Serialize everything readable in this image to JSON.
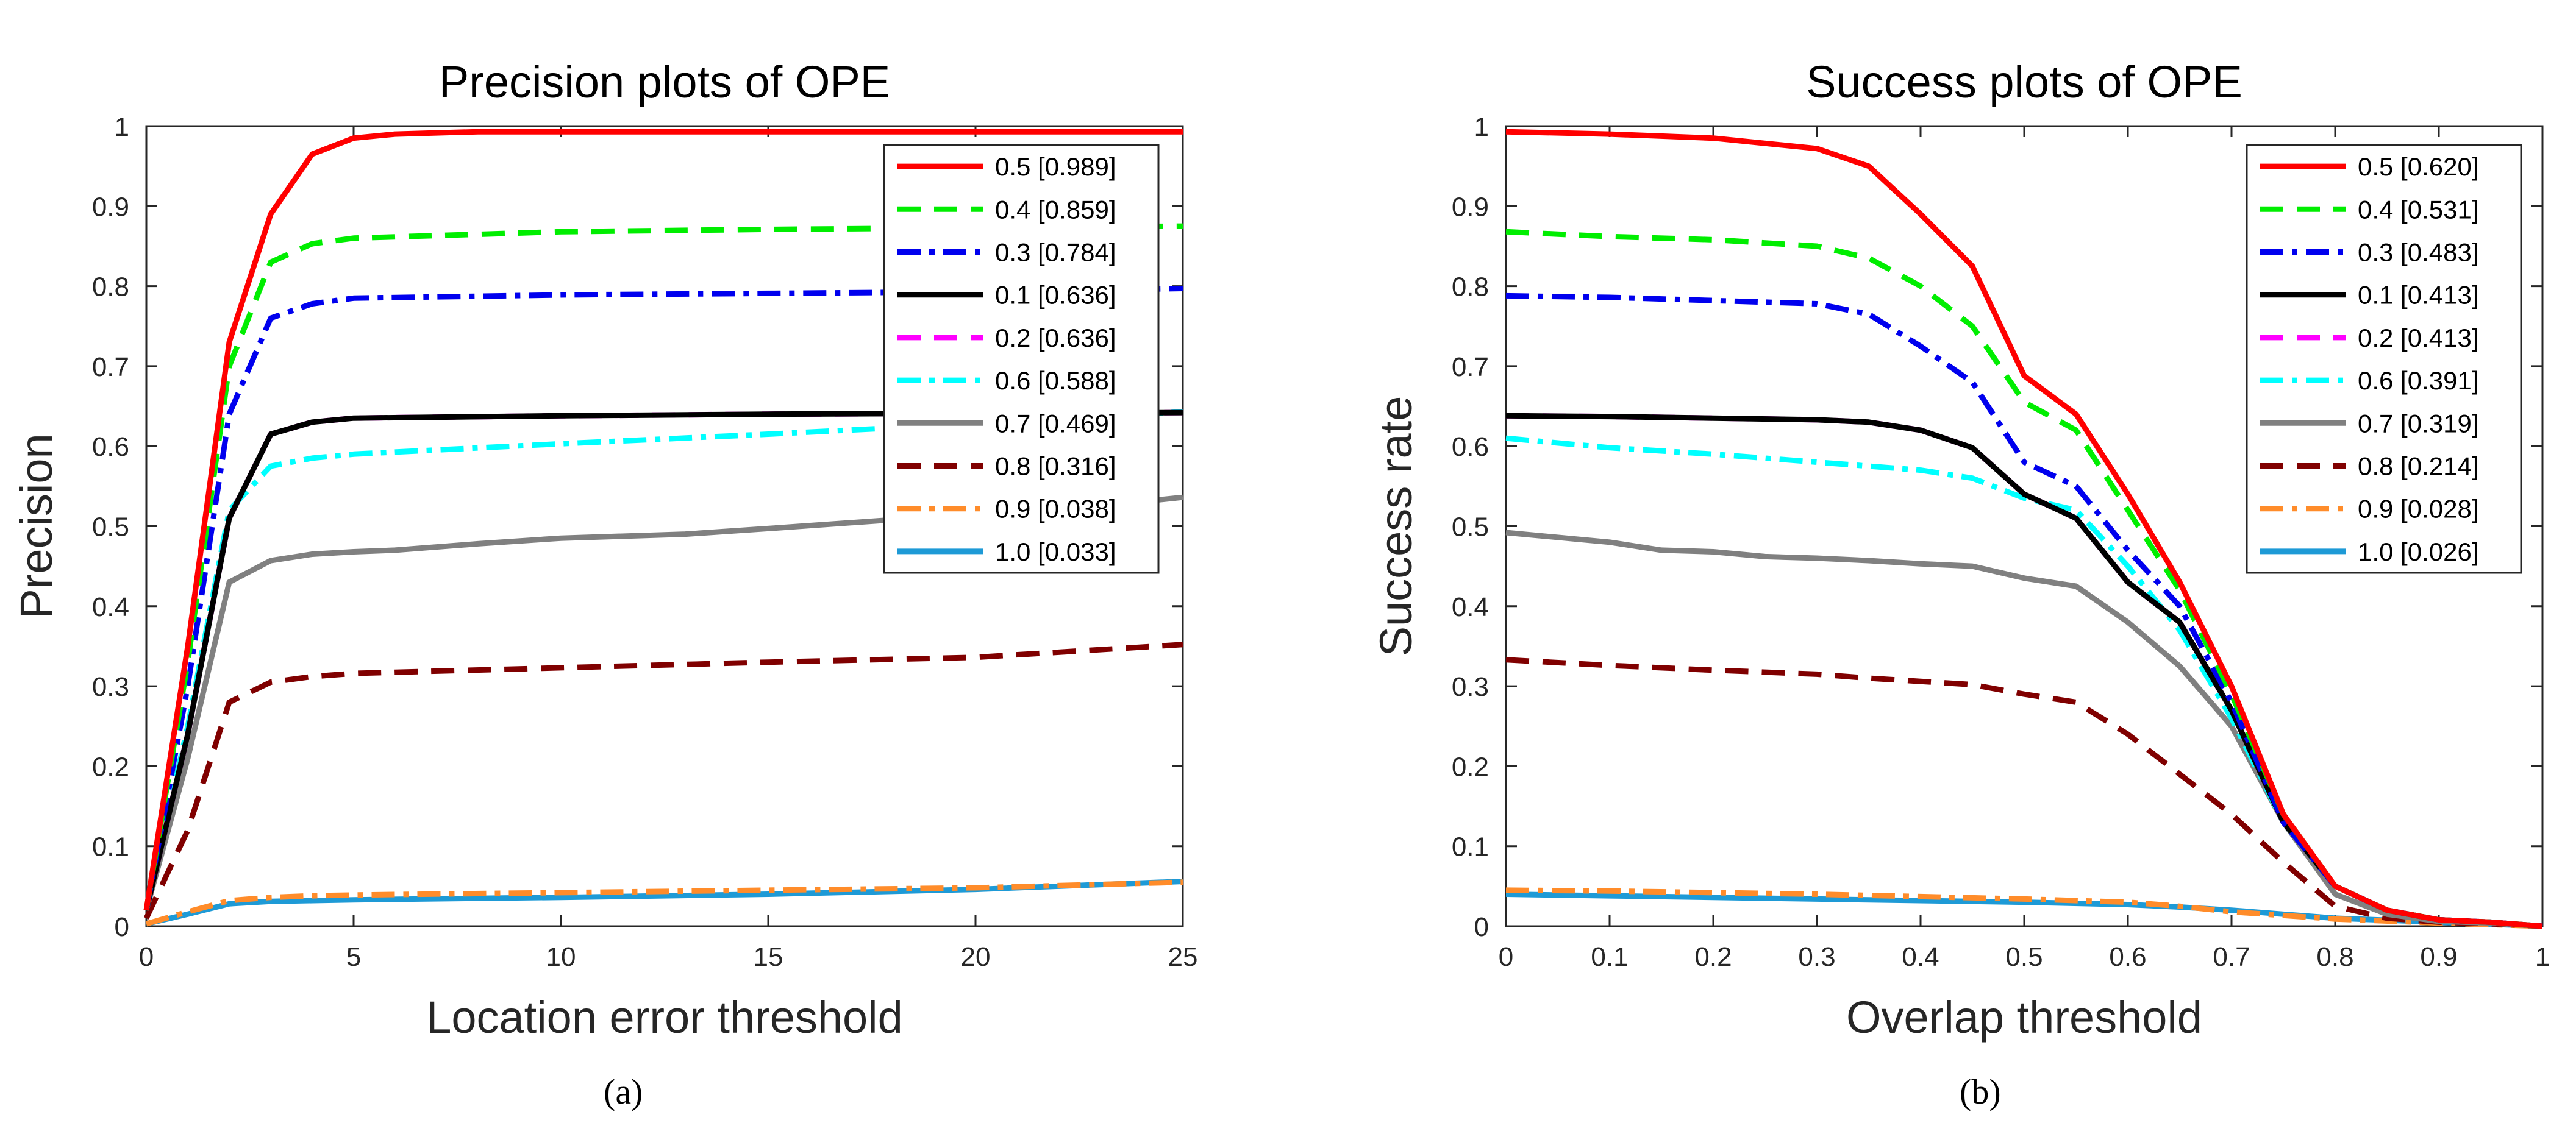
{
  "panel_labels": [
    "(a)",
    "(b)"
  ],
  "chart_data": [
    {
      "type": "line",
      "title": "Precision plots of OPE",
      "xlabel": "Location error threshold",
      "ylabel": "Precision",
      "xlim": [
        0,
        25
      ],
      "ylim": [
        0,
        1
      ],
      "x_ticks": [
        "0",
        "5",
        "10",
        "15",
        "20",
        "25"
      ],
      "y_ticks": [
        "0",
        "0.1",
        "0.2",
        "0.3",
        "0.4",
        "0.5",
        "0.6",
        "0.7",
        "0.8",
        "0.9",
        "1"
      ],
      "grid": false,
      "legend_position": "top-right",
      "series": [
        {
          "name": "0.5 [0.989]",
          "color": "#ff0000",
          "dash": "solid",
          "x": [
            0,
            1,
            2,
            3,
            4,
            5,
            6,
            8,
            10,
            15,
            20,
            25
          ],
          "values": [
            0.02,
            0.35,
            0.73,
            0.89,
            0.965,
            0.985,
            0.99,
            0.993,
            0.993,
            0.993,
            0.993,
            0.993
          ]
        },
        {
          "name": "0.4 [0.859]",
          "color": "#00ee00",
          "dash": "dash",
          "x": [
            0,
            1,
            2,
            3,
            4,
            5,
            10,
            15,
            20,
            25
          ],
          "values": [
            0.02,
            0.33,
            0.7,
            0.83,
            0.853,
            0.86,
            0.868,
            0.871,
            0.873,
            0.875
          ]
        },
        {
          "name": "0.3 [0.784]",
          "color": "#0000ee",
          "dash": "dashdot",
          "x": [
            0,
            1,
            2,
            3,
            4,
            5,
            10,
            15,
            20,
            25
          ],
          "values": [
            0.02,
            0.3,
            0.64,
            0.76,
            0.778,
            0.785,
            0.789,
            0.791,
            0.793,
            0.797
          ]
        },
        {
          "name": "0.1 [0.636]",
          "color": "#000000",
          "dash": "solid",
          "x": [
            0,
            1,
            2,
            3,
            4,
            5,
            10,
            15,
            20,
            25
          ],
          "values": [
            0.02,
            0.24,
            0.51,
            0.615,
            0.63,
            0.635,
            0.638,
            0.64,
            0.641,
            0.642
          ]
        },
        {
          "name": "0.2 [0.636]",
          "color": "#ff00ff",
          "dash": "dash",
          "x": [
            0,
            1,
            2,
            3,
            4,
            5,
            10,
            15,
            20,
            25
          ],
          "values": [
            0.02,
            0.24,
            0.51,
            0.615,
            0.63,
            0.635,
            0.638,
            0.64,
            0.641,
            0.642
          ]
        },
        {
          "name": "0.6 [0.588]",
          "color": "#00ffff",
          "dash": "dashdot",
          "x": [
            0,
            1,
            2,
            3,
            4,
            5,
            10,
            15,
            20,
            25
          ],
          "values": [
            0.02,
            0.25,
            0.52,
            0.575,
            0.585,
            0.59,
            0.603,
            0.615,
            0.628,
            0.643
          ]
        },
        {
          "name": "0.7 [0.469]",
          "color": "#808080",
          "dash": "solid",
          "x": [
            0,
            1,
            2,
            3,
            4,
            5,
            6,
            8,
            10,
            13,
            15,
            18,
            20,
            22,
            25
          ],
          "values": [
            0.02,
            0.21,
            0.43,
            0.457,
            0.465,
            0.468,
            0.47,
            0.478,
            0.485,
            0.49,
            0.497,
            0.508,
            0.51,
            0.52,
            0.536
          ]
        },
        {
          "name": "0.8 [0.316]",
          "color": "#800000",
          "dash": "dash",
          "x": [
            0,
            1,
            2,
            3,
            4,
            5,
            10,
            15,
            20,
            25
          ],
          "values": [
            0.01,
            0.12,
            0.28,
            0.305,
            0.312,
            0.316,
            0.323,
            0.33,
            0.336,
            0.352
          ]
        },
        {
          "name": "0.9 [0.038]",
          "color": "#ff8c2a",
          "dash": "dashdot",
          "x": [
            0,
            1,
            2,
            3,
            4,
            5,
            10,
            15,
            20,
            25
          ],
          "values": [
            0.003,
            0.018,
            0.032,
            0.036,
            0.038,
            0.039,
            0.042,
            0.045,
            0.048,
            0.055
          ]
        },
        {
          "name": "1.0 [0.033]",
          "color": "#1e9ad6",
          "dash": "solid",
          "x": [
            0,
            1,
            2,
            3,
            4,
            5,
            10,
            15,
            20,
            25
          ],
          "values": [
            0.003,
            0.015,
            0.028,
            0.031,
            0.032,
            0.033,
            0.036,
            0.04,
            0.046,
            0.056
          ]
        }
      ]
    },
    {
      "type": "line",
      "title": "Success plots of OPE",
      "xlabel": "Overlap threshold",
      "ylabel": "Success rate",
      "xlim": [
        0,
        1
      ],
      "ylim": [
        0,
        1
      ],
      "x_ticks": [
        "0",
        "0.1",
        "0.2",
        "0.3",
        "0.4",
        "0.5",
        "0.6",
        "0.7",
        "0.8",
        "0.9",
        "1"
      ],
      "y_ticks": [
        "0",
        "0.1",
        "0.2",
        "0.3",
        "0.4",
        "0.5",
        "0.6",
        "0.7",
        "0.8",
        "0.9",
        "1"
      ],
      "grid": false,
      "legend_position": "top-right",
      "series": [
        {
          "name": "0.5 [0.620]",
          "color": "#ff0000",
          "dash": "solid",
          "x": [
            0,
            0.1,
            0.2,
            0.3,
            0.35,
            0.4,
            0.45,
            0.5,
            0.55,
            0.6,
            0.65,
            0.7,
            0.75,
            0.8,
            0.85,
            0.9,
            0.95,
            1
          ],
          "values": [
            0.993,
            0.99,
            0.985,
            0.972,
            0.95,
            0.89,
            0.825,
            0.688,
            0.64,
            0.54,
            0.43,
            0.3,
            0.14,
            0.05,
            0.02,
            0.008,
            0.005,
            0.0
          ]
        },
        {
          "name": "0.4 [0.531]",
          "color": "#00ee00",
          "dash": "dash",
          "x": [
            0,
            0.1,
            0.2,
            0.3,
            0.35,
            0.4,
            0.45,
            0.5,
            0.55,
            0.6,
            0.65,
            0.7,
            0.75,
            0.8,
            0.85,
            0.9,
            0.95,
            1
          ],
          "values": [
            0.868,
            0.862,
            0.858,
            0.85,
            0.835,
            0.8,
            0.75,
            0.655,
            0.62,
            0.52,
            0.42,
            0.29,
            0.14,
            0.05,
            0.02,
            0.008,
            0.005,
            0.0
          ]
        },
        {
          "name": "0.3 [0.483]",
          "color": "#0000ee",
          "dash": "dashdot",
          "x": [
            0,
            0.1,
            0.2,
            0.3,
            0.35,
            0.4,
            0.45,
            0.5,
            0.55,
            0.6,
            0.65,
            0.7,
            0.75,
            0.8,
            0.85,
            0.9,
            0.95,
            1
          ],
          "values": [
            0.788,
            0.786,
            0.782,
            0.778,
            0.765,
            0.725,
            0.68,
            0.58,
            0.55,
            0.47,
            0.4,
            0.28,
            0.13,
            0.05,
            0.02,
            0.008,
            0.005,
            0.0
          ]
        },
        {
          "name": "0.1 [0.413]",
          "color": "#000000",
          "dash": "solid",
          "x": [
            0,
            0.1,
            0.2,
            0.3,
            0.35,
            0.4,
            0.45,
            0.5,
            0.55,
            0.6,
            0.65,
            0.7,
            0.75,
            0.8,
            0.85,
            0.9,
            0.95,
            1
          ],
          "values": [
            0.638,
            0.637,
            0.635,
            0.633,
            0.63,
            0.62,
            0.598,
            0.54,
            0.51,
            0.43,
            0.38,
            0.27,
            0.13,
            0.05,
            0.02,
            0.008,
            0.005,
            0.0
          ]
        },
        {
          "name": "0.2 [0.413]",
          "color": "#ff00ff",
          "dash": "dash",
          "x": [
            0,
            0.1,
            0.2,
            0.3,
            0.35,
            0.4,
            0.45,
            0.5,
            0.55,
            0.6,
            0.65,
            0.7,
            0.75,
            0.8,
            0.85,
            0.9,
            0.95,
            1
          ],
          "values": [
            0.638,
            0.637,
            0.635,
            0.633,
            0.63,
            0.62,
            0.598,
            0.54,
            0.51,
            0.43,
            0.38,
            0.27,
            0.13,
            0.05,
            0.02,
            0.008,
            0.005,
            0.0
          ]
        },
        {
          "name": "0.6 [0.391]",
          "color": "#00ffff",
          "dash": "dashdot",
          "x": [
            0,
            0.1,
            0.2,
            0.3,
            0.35,
            0.4,
            0.45,
            0.5,
            0.55,
            0.6,
            0.65,
            0.7,
            0.75,
            0.8,
            0.85,
            0.9,
            0.95,
            1
          ],
          "values": [
            0.61,
            0.598,
            0.59,
            0.58,
            0.575,
            0.57,
            0.56,
            0.535,
            0.52,
            0.45,
            0.37,
            0.26,
            0.13,
            0.05,
            0.02,
            0.008,
            0.005,
            0.0
          ]
        },
        {
          "name": "0.7 [0.319]",
          "color": "#808080",
          "dash": "solid",
          "x": [
            0,
            0.1,
            0.15,
            0.2,
            0.25,
            0.3,
            0.35,
            0.4,
            0.45,
            0.5,
            0.55,
            0.6,
            0.65,
            0.7,
            0.75,
            0.8,
            0.85,
            0.9,
            0.95,
            1
          ],
          "values": [
            0.492,
            0.48,
            0.47,
            0.468,
            0.462,
            0.46,
            0.457,
            0.453,
            0.45,
            0.435,
            0.425,
            0.38,
            0.325,
            0.25,
            0.13,
            0.04,
            0.015,
            0.006,
            0.004,
            0.0
          ]
        },
        {
          "name": "0.8 [0.214]",
          "color": "#800000",
          "dash": "dash",
          "x": [
            0,
            0.1,
            0.2,
            0.3,
            0.35,
            0.4,
            0.45,
            0.5,
            0.55,
            0.6,
            0.65,
            0.7,
            0.75,
            0.8,
            0.85,
            0.9,
            0.95,
            1
          ],
          "values": [
            0.333,
            0.326,
            0.32,
            0.315,
            0.31,
            0.306,
            0.302,
            0.29,
            0.28,
            0.24,
            0.19,
            0.14,
            0.08,
            0.025,
            0.01,
            0.005,
            0.003,
            0.0
          ]
        },
        {
          "name": "0.9 [0.028]",
          "color": "#ff8c2a",
          "dash": "dashdot",
          "x": [
            0,
            0.1,
            0.2,
            0.3,
            0.4,
            0.5,
            0.6,
            0.65,
            0.7,
            0.8,
            0.9,
            1
          ],
          "values": [
            0.045,
            0.044,
            0.042,
            0.04,
            0.037,
            0.034,
            0.03,
            0.025,
            0.018,
            0.009,
            0.004,
            0.0
          ]
        },
        {
          "name": "1.0 [0.026]",
          "color": "#1e9ad6",
          "dash": "solid",
          "x": [
            0,
            0.1,
            0.2,
            0.3,
            0.4,
            0.5,
            0.6,
            0.65,
            0.7,
            0.75,
            0.8,
            0.9,
            1
          ],
          "values": [
            0.04,
            0.038,
            0.036,
            0.034,
            0.032,
            0.03,
            0.027,
            0.024,
            0.02,
            0.015,
            0.01,
            0.005,
            0.0
          ]
        }
      ]
    }
  ]
}
